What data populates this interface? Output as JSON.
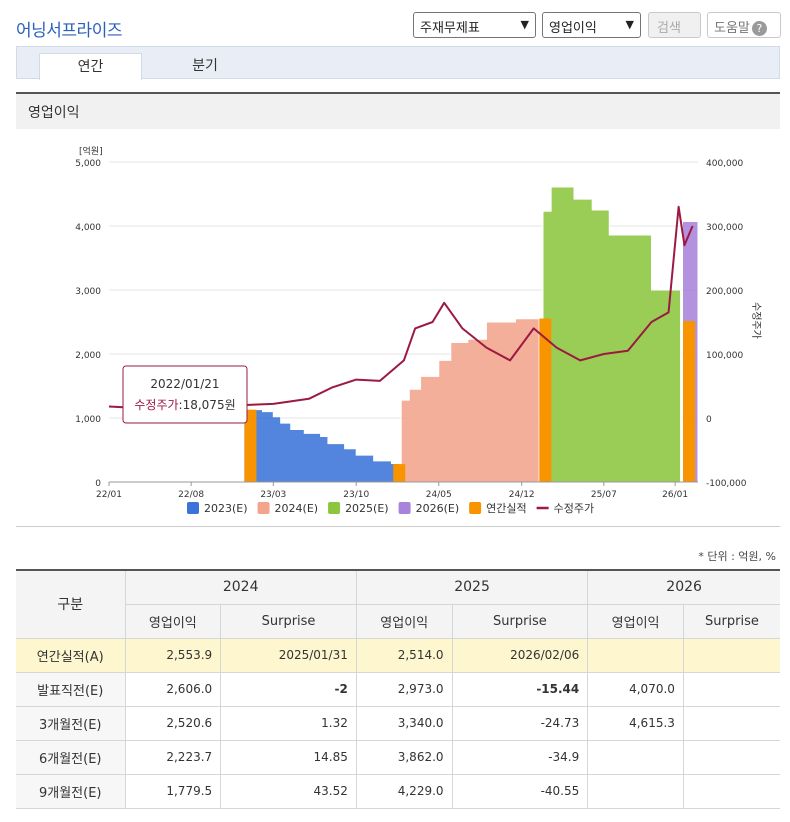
{
  "header": {
    "title": "어닝서프라이즈",
    "select_report": "주재무제표",
    "select_item": "영업이익",
    "search_label": "검색",
    "help_label": "도움말",
    "help_icon": "?"
  },
  "tabs": [
    {
      "label": "연간",
      "active": true
    },
    {
      "label": "분기",
      "active": false
    }
  ],
  "section_title": "영업이익",
  "chart_data": {
    "type": "area",
    "left_axis_unit": "[억원]",
    "right_axis_label": "수정주가",
    "y_left_ticks": [
      "0",
      "1,000",
      "2,000",
      "3,000",
      "4,000",
      "5,000"
    ],
    "y_left_range": [
      0,
      5000
    ],
    "y_right_ticks": [
      "-100,000",
      "0",
      "100,000",
      "200,000",
      "300,000",
      "400,000"
    ],
    "y_right_range": [
      -100000,
      400000
    ],
    "x_ticks": [
      "22/01",
      "22/08",
      "23/03",
      "23/10",
      "24/05",
      "24/12",
      "25/07",
      "26/01"
    ],
    "x_range": [
      "2022-01-01",
      "2026-03-01"
    ],
    "series": [
      {
        "name": "2023(E)",
        "color": "#3b73d9",
        "kind": "estimate",
        "points": [
          [
            "2022-12-15",
            1130
          ],
          [
            "2023-02-01",
            1100
          ],
          [
            "2023-03-01",
            1020
          ],
          [
            "2023-03-20",
            920
          ],
          [
            "2023-04-15",
            820
          ],
          [
            "2023-05-20",
            760
          ],
          [
            "2023-07-01",
            710
          ],
          [
            "2023-07-20",
            600
          ],
          [
            "2023-09-01",
            520
          ],
          [
            "2023-10-01",
            420
          ],
          [
            "2023-11-15",
            330
          ],
          [
            "2023-12-31",
            290
          ],
          [
            "2024-01-20",
            280
          ]
        ]
      },
      {
        "name": "2024(E)",
        "color": "#f2a48c",
        "kind": "estimate",
        "points": [
          [
            "2024-01-25",
            1280
          ],
          [
            "2024-02-15",
            1450
          ],
          [
            "2024-03-15",
            1650
          ],
          [
            "2024-05-01",
            1900
          ],
          [
            "2024-06-01",
            2180
          ],
          [
            "2024-07-15",
            2230
          ],
          [
            "2024-09-01",
            2500
          ],
          [
            "2024-11-15",
            2550
          ],
          [
            "2025-01-15",
            2580
          ]
        ]
      },
      {
        "name": "2025(E)",
        "color": "#8cc63f",
        "kind": "estimate",
        "points": [
          [
            "2025-01-25",
            4230
          ],
          [
            "2025-02-15",
            4610
          ],
          [
            "2025-04-15",
            4420
          ],
          [
            "2025-06-01",
            4250
          ],
          [
            "2025-07-15",
            3860
          ],
          [
            "2025-10-01",
            3860
          ],
          [
            "2025-11-01",
            3000
          ],
          [
            "2026-01-15",
            3000
          ]
        ]
      },
      {
        "name": "2026(E)",
        "color": "#a883dc",
        "kind": "estimate",
        "points": [
          [
            "2026-01-20",
            4070
          ],
          [
            "2026-03-01",
            4070
          ]
        ]
      },
      {
        "name": "연간실적",
        "color": "#f79400",
        "kind": "actual",
        "bars": [
          [
            "2023-01-01",
            1130
          ],
          [
            "2024-01-20",
            280
          ],
          [
            "2025-01-31",
            2553.9
          ],
          [
            "2026-02-06",
            2514.0
          ]
        ]
      },
      {
        "name": "수정주가",
        "color": "#9c1a42",
        "kind": "line",
        "axis": "right",
        "points": [
          [
            "2022-01-01",
            18000
          ],
          [
            "2022-03-01",
            16000
          ],
          [
            "2022-06-01",
            14000
          ],
          [
            "2022-09-01",
            17000
          ],
          [
            "2022-12-01",
            20000
          ],
          [
            "2023-03-01",
            22000
          ],
          [
            "2023-06-01",
            30000
          ],
          [
            "2023-08-01",
            48000
          ],
          [
            "2023-10-01",
            60000
          ],
          [
            "2023-12-01",
            58000
          ],
          [
            "2024-02-01",
            90000
          ],
          [
            "2024-03-01",
            140000
          ],
          [
            "2024-04-15",
            150000
          ],
          [
            "2024-05-15",
            180000
          ],
          [
            "2024-07-01",
            140000
          ],
          [
            "2024-09-01",
            110000
          ],
          [
            "2024-11-01",
            90000
          ],
          [
            "2025-01-01",
            140000
          ],
          [
            "2025-03-01",
            110000
          ],
          [
            "2025-05-01",
            90000
          ],
          [
            "2025-07-01",
            100000
          ],
          [
            "2025-09-01",
            105000
          ],
          [
            "2025-11-01",
            150000
          ],
          [
            "2025-12-15",
            165000
          ],
          [
            "2026-01-10",
            330000
          ],
          [
            "2026-01-25",
            270000
          ],
          [
            "2026-02-15",
            300000
          ]
        ]
      }
    ],
    "tooltip": {
      "date": "2022/01/21",
      "label": "수정주가",
      "value": "18,075원"
    }
  },
  "unit_note": "* 단위 : 억원, %",
  "table": {
    "group_header": "구분",
    "years": [
      "2024",
      "2025",
      "2026"
    ],
    "sub_headers": [
      "영업이익",
      "Surprise"
    ],
    "rows": [
      {
        "label": "연간실적(A)",
        "cells": [
          "2,553.9",
          "2025/01/31",
          "2,514.0",
          "2026/02/06",
          "",
          ""
        ],
        "highlight": true
      },
      {
        "label": "발표직전(E)",
        "cells": [
          "2,606.0",
          "-2",
          "2,973.0",
          "-15.44",
          "4,070.0",
          ""
        ]
      },
      {
        "label": "3개월전(E)",
        "cells": [
          "2,520.6",
          "1.32",
          "3,340.0",
          "-24.73",
          "4,615.3",
          ""
        ]
      },
      {
        "label": "6개월전(E)",
        "cells": [
          "2,223.7",
          "14.85",
          "3,862.0",
          "-34.9",
          "",
          ""
        ]
      },
      {
        "label": "9개월전(E)",
        "cells": [
          "1,779.5",
          "43.52",
          "4,229.0",
          "-40.55",
          "",
          ""
        ]
      }
    ]
  }
}
